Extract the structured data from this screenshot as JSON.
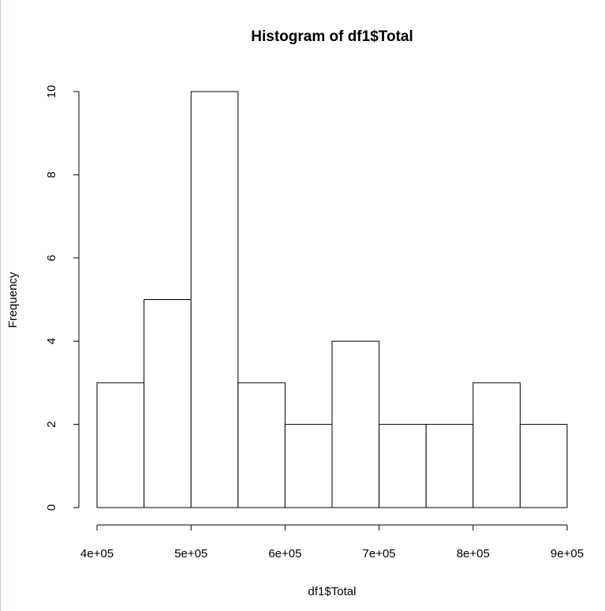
{
  "chart_data": {
    "type": "histogram",
    "title": "Histogram of df1$Total",
    "x_label": "df1$Total",
    "y_label": "Frequency",
    "bins": [
      400000,
      450000,
      500000,
      550000,
      600000,
      650000,
      700000,
      750000,
      800000,
      850000,
      900000
    ],
    "values": [
      3,
      5,
      10,
      3,
      2,
      4,
      2,
      2,
      3,
      2
    ],
    "color": "#ffffff",
    "xlim": [
      400000,
      900000
    ],
    "xticks": [
      {
        "value": 400000,
        "label": "4e+05"
      },
      {
        "value": 500000,
        "label": "5e+05"
      },
      {
        "value": 600000,
        "label": "6e+05"
      },
      {
        "value": 700000,
        "label": "7e+05"
      },
      {
        "value": 800000,
        "label": "8e+05"
      },
      {
        "value": 900000,
        "label": "9e+05"
      }
    ],
    "ylim": [
      0,
      10
    ],
    "yticks": [
      0,
      2,
      4,
      6,
      8,
      10
    ]
  }
}
